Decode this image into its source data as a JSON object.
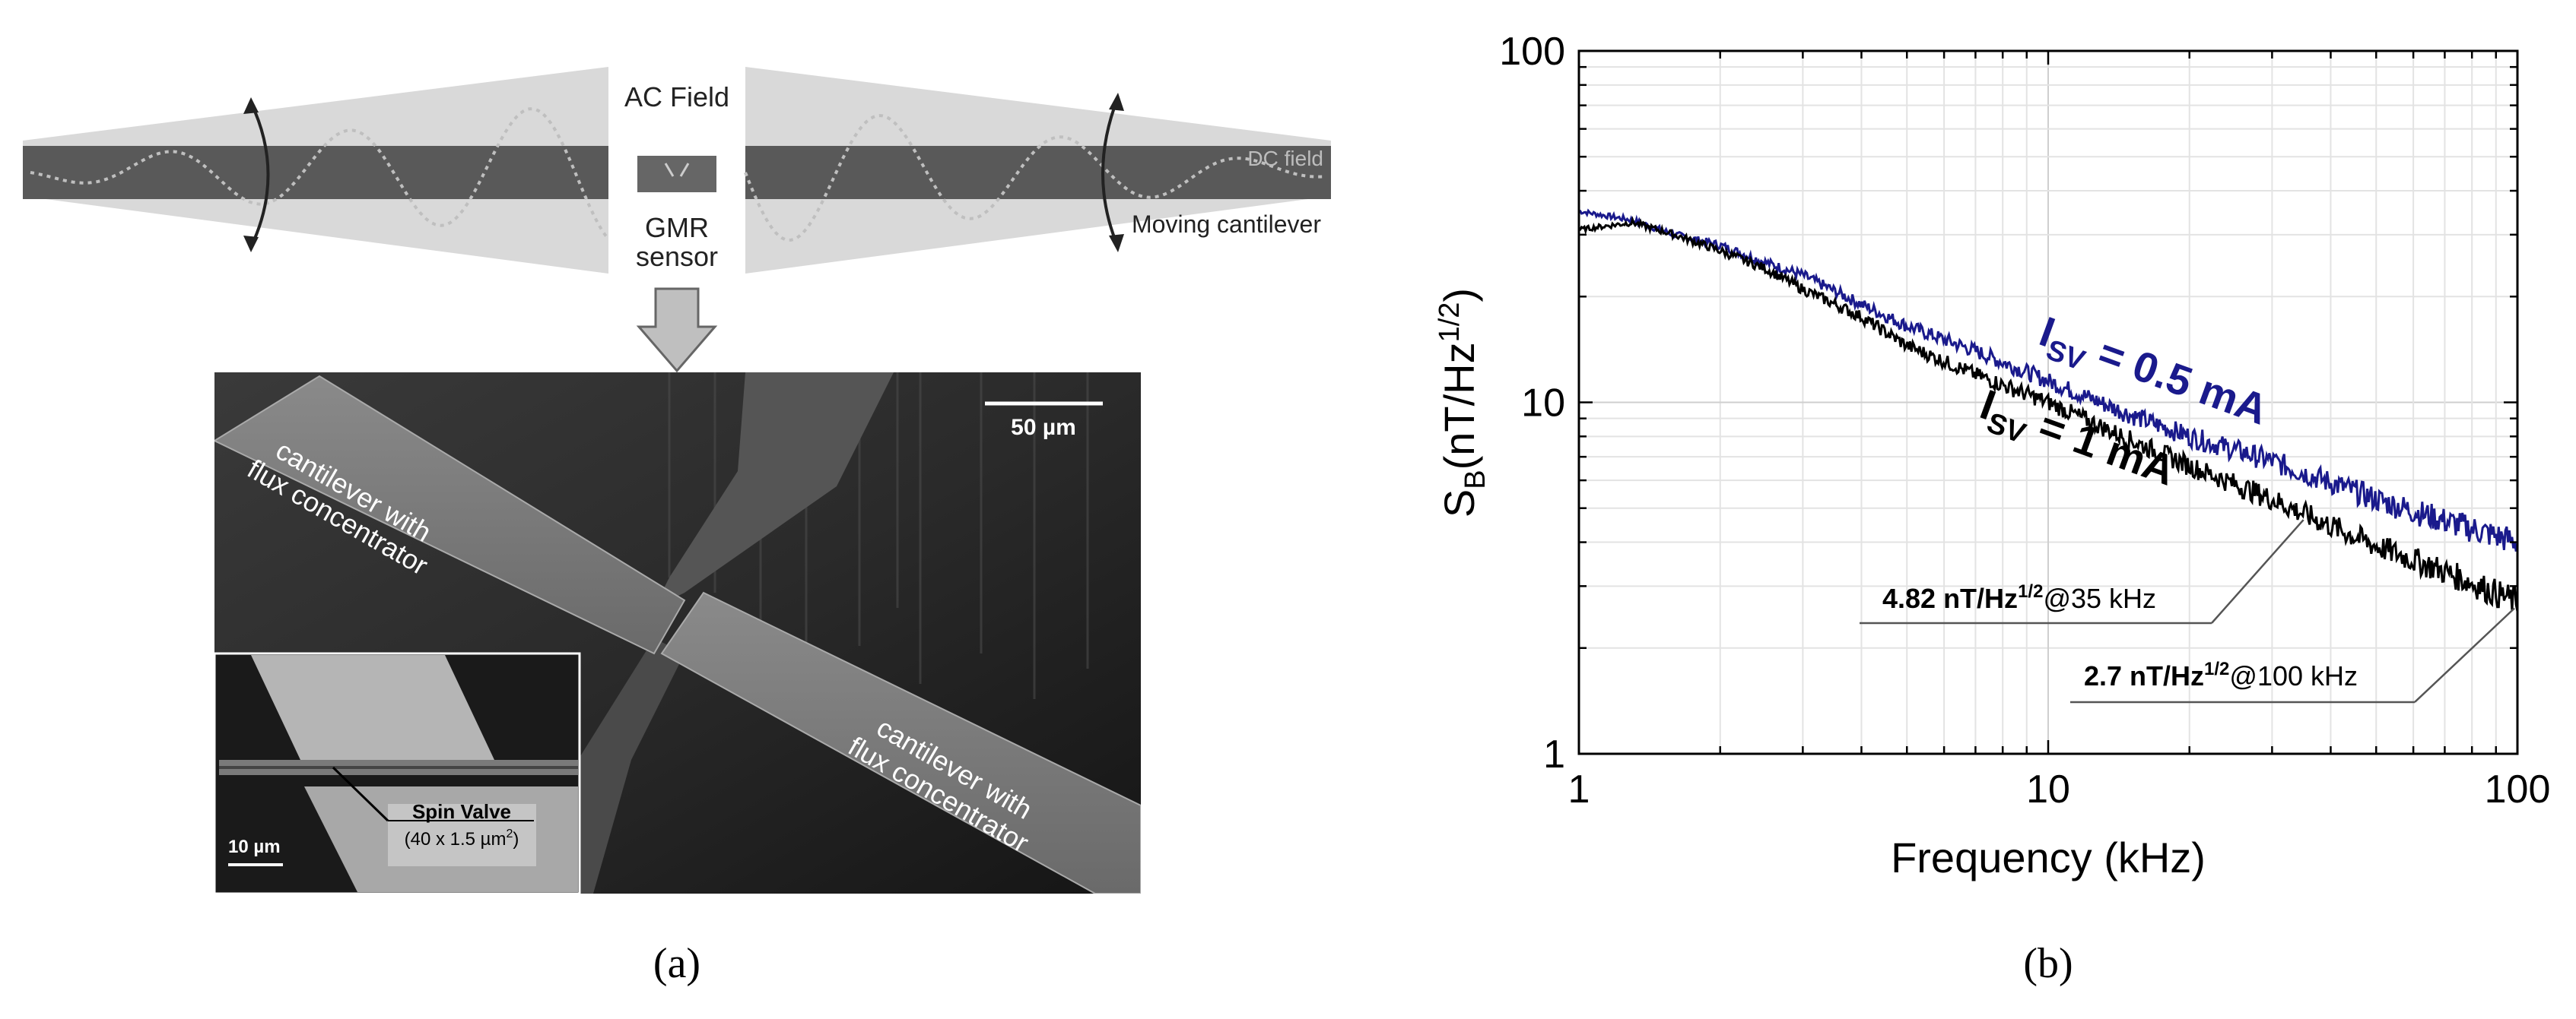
{
  "panel_a": {
    "caption": "(a)",
    "schematic": {
      "ac_field": "AC Field",
      "dc_field": "DC field",
      "gmr_line1": "GMR",
      "gmr_line2": "sensor",
      "moving_cantilever": "Moving cantilever"
    },
    "sem": {
      "scale_main": "50 µm",
      "cantilever_left_line1": "cantilever with",
      "cantilever_left_line2": "flux concentrator",
      "cantilever_right_line1": "cantilever with",
      "cantilever_right_line2": "flux concentrator",
      "inset_scale": "10 µm",
      "spin_valve": "Spin Valve",
      "spin_valve_dims_prefix": "(40 x 1.5 µm",
      "spin_valve_dims_sup": "2",
      "spin_valve_dims_suffix": ")"
    }
  },
  "panel_b": {
    "caption": "(b)"
  },
  "chart_data": {
    "type": "line",
    "xlabel": "Frequency (kHz)",
    "ylabel_main": "S",
    "ylabel_sub": "B",
    "ylabel_unit": "(nT/Hz",
    "ylabel_sup": "1/2",
    "ylabel_close": ")",
    "x_scale": "log",
    "y_scale": "log",
    "xlim": [
      1,
      100
    ],
    "ylim": [
      1,
      100
    ],
    "x_ticks": [
      "1",
      "10",
      "100"
    ],
    "y_ticks": [
      "1",
      "10",
      "100"
    ],
    "grid": true,
    "series": [
      {
        "label_main": "I",
        "label_sub": "SV",
        "label_rest": " = 0.5 mA",
        "color": "#1a1a8c",
        "x": [
          1,
          1.3,
          1.6,
          2,
          2.5,
          3,
          4,
          5,
          7,
          10,
          15,
          20,
          30,
          50,
          70,
          100
        ],
        "y": [
          35,
          33,
          30,
          28,
          25,
          23,
          19,
          16.5,
          14,
          11.5,
          9.2,
          8.0,
          6.8,
          5.3,
          4.6,
          4.0
        ]
      },
      {
        "label_main": "I",
        "label_sub": "SV",
        "label_rest": " = 1 mA",
        "color": "#000000",
        "x": [
          1,
          1.3,
          1.6,
          2,
          2.5,
          3,
          4,
          5,
          7,
          10,
          15,
          20,
          30,
          35,
          50,
          70,
          100
        ],
        "y": [
          31,
          32.5,
          30,
          27,
          24,
          21,
          17.5,
          14.5,
          12,
          10,
          7.8,
          6.6,
          5.3,
          4.82,
          3.9,
          3.3,
          2.7
        ]
      }
    ],
    "annotations": [
      {
        "value": "4.82 nT/Hz",
        "sup": "1/2",
        "suffix": "@35 kHz",
        "x": 35,
        "y": 4.82
      },
      {
        "value": "2.7 nT/Hz",
        "sup": "1/2",
        "suffix": "@100 kHz",
        "x": 100,
        "y": 2.7
      }
    ]
  }
}
